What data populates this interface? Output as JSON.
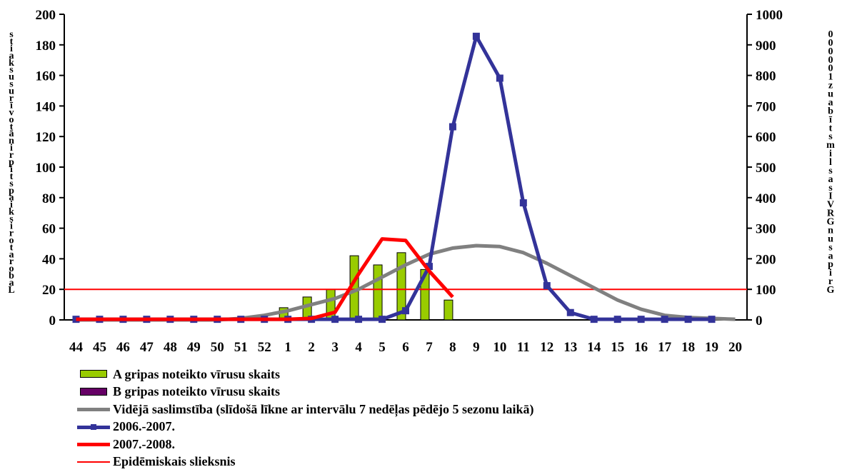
{
  "chart_data": {
    "type": "bar+line",
    "categories": [
      "44",
      "45",
      "46",
      "47",
      "48",
      "49",
      "50",
      "51",
      "52",
      "1",
      "2",
      "3",
      "4",
      "5",
      "6",
      "7",
      "8",
      "9",
      "10",
      "11",
      "12",
      "13",
      "14",
      "15",
      "16",
      "17",
      "18",
      "19",
      "20"
    ],
    "left_axis": {
      "title": "Laboratoriski apstiprināto vīrusu skaits",
      "min": 0,
      "max": 200,
      "step": 20
    },
    "right_axis": {
      "title": "Gripas un GRVI saslimstība uz 100 000",
      "min": 0,
      "max": 1000,
      "step": 100
    },
    "series": [
      {
        "name": "A gripas noteikto vīrusu skaits",
        "kind": "bar",
        "axis": "left",
        "color": "#99CC00",
        "values": [
          0,
          0,
          0,
          0,
          0,
          0,
          0,
          1,
          3,
          8,
          15,
          20,
          42,
          36,
          44,
          33,
          13,
          null,
          null,
          null,
          null,
          null,
          null,
          null,
          null,
          null,
          null,
          null,
          null
        ]
      },
      {
        "name": "B gripas noteikto vīrusu skaits",
        "kind": "bar",
        "axis": "left",
        "color": "#660066",
        "values": [
          0,
          0,
          0,
          0,
          0,
          0,
          0,
          0,
          0,
          0,
          0,
          0,
          0,
          0,
          0,
          0,
          0,
          null,
          null,
          null,
          null,
          null,
          null,
          null,
          null,
          null,
          null,
          null,
          null
        ]
      },
      {
        "name": "Vidējā saslimstība (slīdošā līkne ar intervālu 7 nedēļas pēdējo 5 sezonu laikā)",
        "kind": "line",
        "axis": "right",
        "color": "#808080",
        "values": [
          0,
          0,
          0,
          0,
          0,
          0,
          0,
          5,
          15,
          30,
          50,
          70,
          100,
          140,
          180,
          215,
          235,
          243,
          240,
          220,
          185,
          145,
          105,
          65,
          35,
          15,
          8,
          5,
          2
        ]
      },
      {
        "name": "2006.-2007.",
        "kind": "line-marker",
        "axis": "right",
        "color": "#333399",
        "values": [
          2,
          2,
          2,
          2,
          2,
          2,
          2,
          2,
          2,
          2,
          2,
          2,
          2,
          2,
          30,
          175,
          632,
          928,
          791,
          383,
          112,
          24,
          2,
          2,
          2,
          2,
          2,
          2,
          null
        ]
      },
      {
        "name": "2007.-2008.",
        "kind": "line",
        "axis": "right",
        "color": "#FF0000",
        "values": [
          2,
          2,
          2,
          2,
          2,
          2,
          2,
          2,
          2,
          2,
          5,
          25,
          150,
          265,
          260,
          160,
          75,
          null,
          null,
          null,
          null,
          null,
          null,
          null,
          null,
          null,
          null,
          null,
          null
        ]
      },
      {
        "name": "Epidēmiskais slieksnis",
        "kind": "hline",
        "axis": "right",
        "color": "#FF0000",
        "value": 100
      }
    ],
    "grid": false
  }
}
